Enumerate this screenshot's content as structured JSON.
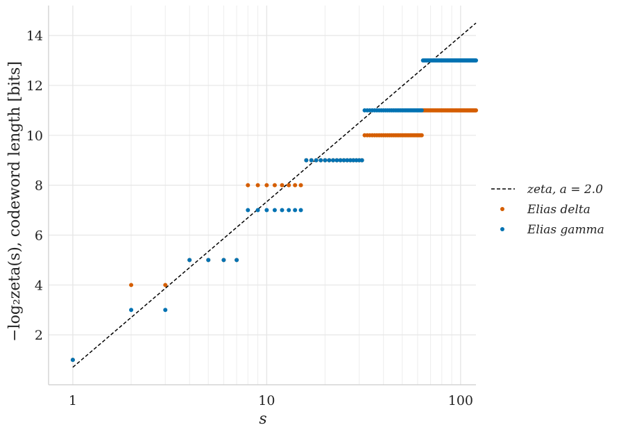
{
  "chart_data": {
    "type": "scatter",
    "x_scale": "log",
    "xlim": [
      0.75,
      120
    ],
    "ylim": [
      0,
      15.2
    ],
    "x_ticks": [
      1,
      10,
      100
    ],
    "x_tick_labels": [
      "1",
      "10",
      "100"
    ],
    "y_ticks": [
      2,
      4,
      6,
      8,
      10,
      12,
      14
    ],
    "y_tick_labels": [
      "2",
      "4",
      "6",
      "8",
      "10",
      "12",
      "14"
    ],
    "xlabel": "s",
    "ylabel": "−log₂zeta(s), codeword length [bits]",
    "grid": true,
    "legend_position": "right",
    "series": [
      {
        "name": "zeta, a = 2.0",
        "kind": "line",
        "style": "dashed",
        "color": "#000000",
        "x": [
          1,
          120
        ],
        "y": [
          0.7,
          14.5
        ]
      },
      {
        "name": "Elias delta",
        "kind": "scatter",
        "color": "#D55E00",
        "x_range": [
          1,
          120
        ],
        "formula": "elias_delta"
      },
      {
        "name": "Elias gamma",
        "kind": "scatter",
        "color": "#0072B2",
        "x_range": [
          1,
          120
        ],
        "formula": "elias_gamma"
      }
    ]
  },
  "legend": {
    "items": [
      {
        "label": "zeta, a = 2.0"
      },
      {
        "label": "Elias delta"
      },
      {
        "label": "Elias gamma"
      }
    ]
  }
}
